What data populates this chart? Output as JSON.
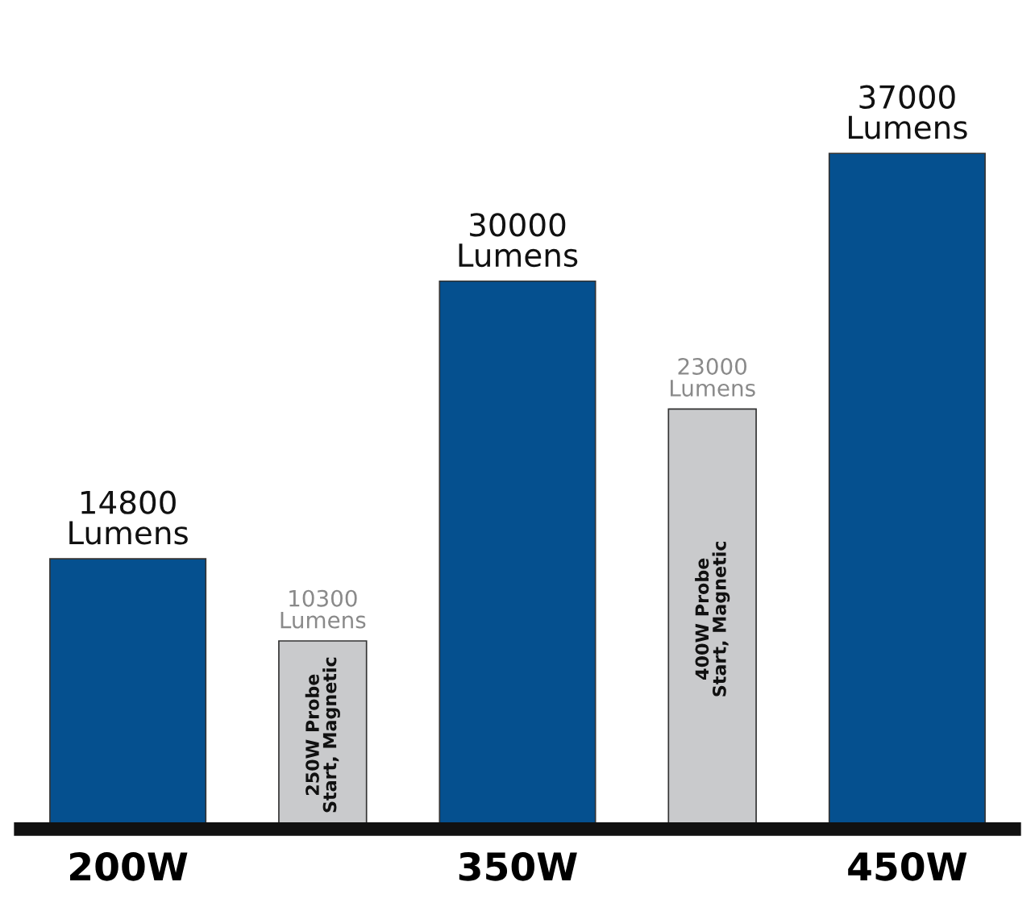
{
  "chart_data": {
    "type": "bar",
    "categories": [
      "200W",
      "250W Probe Start, Magnetic",
      "350W",
      "400W Probe Start, Magnetic",
      "450W"
    ],
    "values": [
      14800,
      10300,
      30000,
      23000,
      37000
    ],
    "colors": [
      "#05508f",
      "#c9cacc",
      "#05508f",
      "#c9cacc",
      "#05508f"
    ],
    "value_labels": [
      "14800\nLumens",
      "10300\nLumens",
      "30000\nLumens",
      "23000\nLumens",
      "37000\nLumens"
    ],
    "grid": false,
    "legend": false
  }
}
